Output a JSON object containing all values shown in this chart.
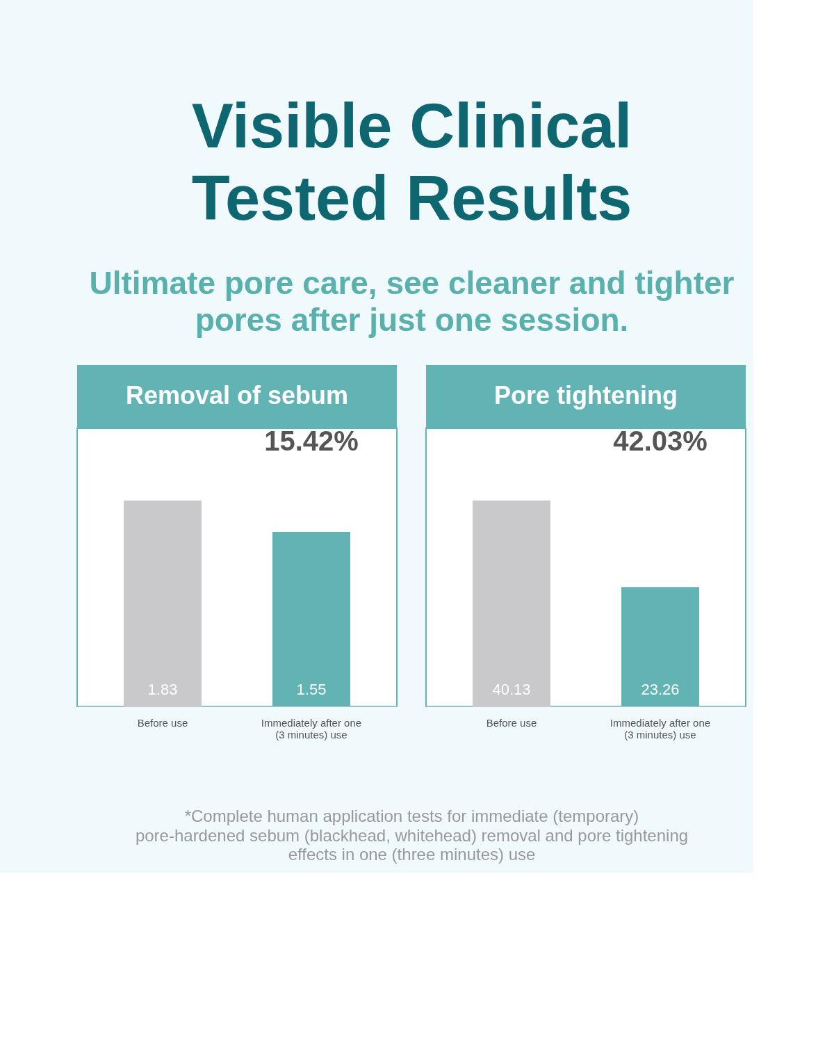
{
  "chart_data": [
    {
      "type": "other",
      "title": "Visible Clinical\nTested Results",
      "subtitle": "Ultimate pore care, see cleaner and tighter\npores after just one session.",
      "annotations": [
        "*Complete human application tests for immediate (temporary)\npore-hardened sebum (blackhead, whitehead) removal and pore tightening\neffects in one (three minutes) use"
      ]
    },
    {
      "type": "bar",
      "title": "Removal of sebum",
      "categories": [
        "Before use",
        "Immediately after one\n(3 minutes) use"
      ],
      "values": [
        1.83,
        1.55
      ],
      "colors": [
        "#c9c9cb",
        "#62b3b4"
      ],
      "data_labels": true,
      "annotations": [
        "15.42%"
      ]
    },
    {
      "type": "bar",
      "title": "Pore tightening",
      "categories": [
        "Before use",
        "Immediately after one\n(3 minutes) use"
      ],
      "values": [
        40.13,
        23.26
      ],
      "colors": [
        "#c9c9cb",
        "#62b3b4"
      ],
      "data_labels": true,
      "annotations": [
        "42.03%"
      ]
    }
  ]
}
